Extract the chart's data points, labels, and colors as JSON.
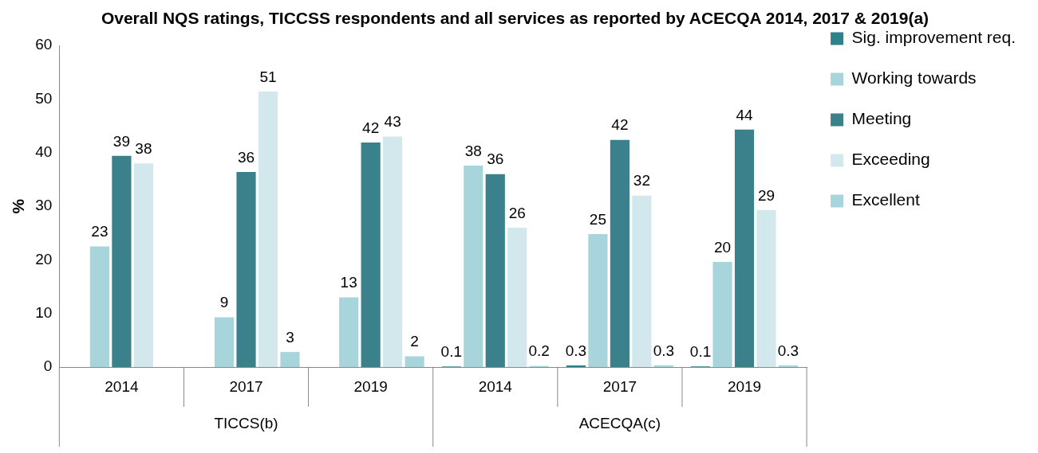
{
  "chart_data": {
    "type": "bar",
    "title": "Overall NQS ratings, TICCSS respondents and all services as reported by ACECQA 2014, 2017 & 2019(a)",
    "ylabel": "%",
    "categories": [
      "2014",
      "2017",
      "2019",
      "2014",
      "2017",
      "2019"
    ],
    "annotations": [
      "TICCS(b)",
      "ACECQA(c)"
    ],
    "ylim": [
      0,
      60
    ],
    "yticks": [
      0,
      10,
      20,
      30,
      40,
      50,
      60
    ],
    "grid": false,
    "legend": "right",
    "series": [
      {
        "name": "Sig. improvement req.",
        "color": "#31818c",
        "values": [
          null,
          null,
          null,
          0.1,
          0.3,
          0.1
        ],
        "value_labels": [
          null,
          null,
          null,
          "0.1",
          "0.3",
          "0.1"
        ]
      },
      {
        "name": "Working towards",
        "color": "#a8d5dc",
        "values": [
          22.5,
          9.3,
          13,
          37.6,
          24.8,
          19.6
        ],
        "value_labels": [
          "23",
          "9",
          "13",
          "38",
          "25",
          "20"
        ]
      },
      {
        "name": "Meeting",
        "color": "#3a818c",
        "values": [
          39.4,
          36.4,
          41.9,
          36,
          42.4,
          44.3
        ],
        "value_labels": [
          "39",
          "36",
          "42",
          "36",
          "42",
          "44"
        ]
      },
      {
        "name": "Exceeding",
        "color": "#d3e8ec",
        "values": [
          38,
          51.4,
          43,
          26,
          32,
          29.3
        ],
        "value_labels": [
          "38",
          "51",
          "43",
          "26",
          "32",
          "29"
        ]
      },
      {
        "name": "Excellent",
        "color": "#a8d5dc",
        "values": [
          null,
          2.8,
          2,
          0.2,
          0.3,
          0.3
        ],
        "value_labels": [
          null,
          "3",
          "2",
          "0.2",
          "0.3",
          "0.3"
        ]
      }
    ]
  }
}
